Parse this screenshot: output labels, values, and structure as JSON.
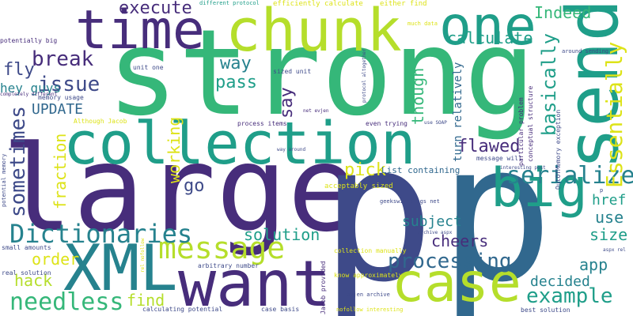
{
  "words": {
    "strong": "strong",
    "large": "large",
    "p1": "p",
    "p2": "p",
    "send": "send",
    "collection": "collection",
    "chunk": "chunk",
    "time": "time",
    "one": "one",
    "XML": "XML",
    "want": "want",
    "big": "big",
    "case": "case",
    "message": "message",
    "Dictionaries": "Dictionaries",
    "needless": "needless",
    "serialize": "serialize",
    "Essentially": "Essentially",
    "processing": "processing",
    "example": "example",
    "sometimes": "sometimes",
    "basically": "basically",
    "break": "break",
    "issue": "issue",
    "execute": "execute",
    "calculate": "calculate",
    "Indeed": "Indeed",
    "way": "way",
    "pass": "pass",
    "say": "say",
    "fly": "fly",
    "hey_guys": "hey guys",
    "UPDATE": "UPDATE",
    "flawed": "flawed",
    "pick": "pick",
    "go": "go",
    "fraction": "fraction",
    "working": "working",
    "solution": "solution",
    "subject": "subject",
    "cheers": "cheers",
    "order": "order",
    "hack": "hack",
    "find": "find",
    "decided": "decided",
    "app": "app",
    "use": "use",
    "size": "size",
    "href": "href",
    "though": "though",
    "turn_relatively": "turn relatively",
    "list_containing": "List containing",
    "different_protocol": "different protocol",
    "efficiently_calculate": "efficiently calculate",
    "either_find": "either find",
    "much_data": "much data",
    "potentially_big": "potentially big",
    "completely_different": "completely different",
    "unit_one": "unit one",
    "sized_unit": "sized unit",
    "memory_usage": "memory usage",
    "although_jacob": "Although Jacob",
    "process_items": "process items",
    "even_trying": "even trying",
    "use_soap": "use SOAP",
    "net_evjen": "net evjen",
    "message_will": "message will",
    "acceptably_sized": "acceptably sized",
    "geekswithblogs_net": "geekswithblogs net",
    "way_around": "way around",
    "interesting_post": "interesting post",
    "protocol_altogether": "protocol altogether",
    "particular_problem": "particular problem",
    "conceptual_structure": "conceptual structure",
    "around_sending": "around sending",
    "outofmemory_exception": "OutOfMemory exception",
    "potential_memory": "potential memory",
    "small_amounts": "small amounts",
    "real_solution": "real solution",
    "arbitrary_number": "arbitrary number",
    "jacob_provided": "Jacob provided",
    "collection_manually": "collection manually",
    "know_approximately": "know approximately",
    "archive_aspx": "archive aspx",
    "aspx_rel": "aspx rel",
    "rel_nofollow": "rel nofollow",
    "calculating_potential": "calculating potential",
    "case_basis": "case basis",
    "evjen_archive": "evjen archive",
    "nofollow_interesting": "nofollow interesting",
    "best_solution": "best solution",
    "small_p": "p"
  }
}
